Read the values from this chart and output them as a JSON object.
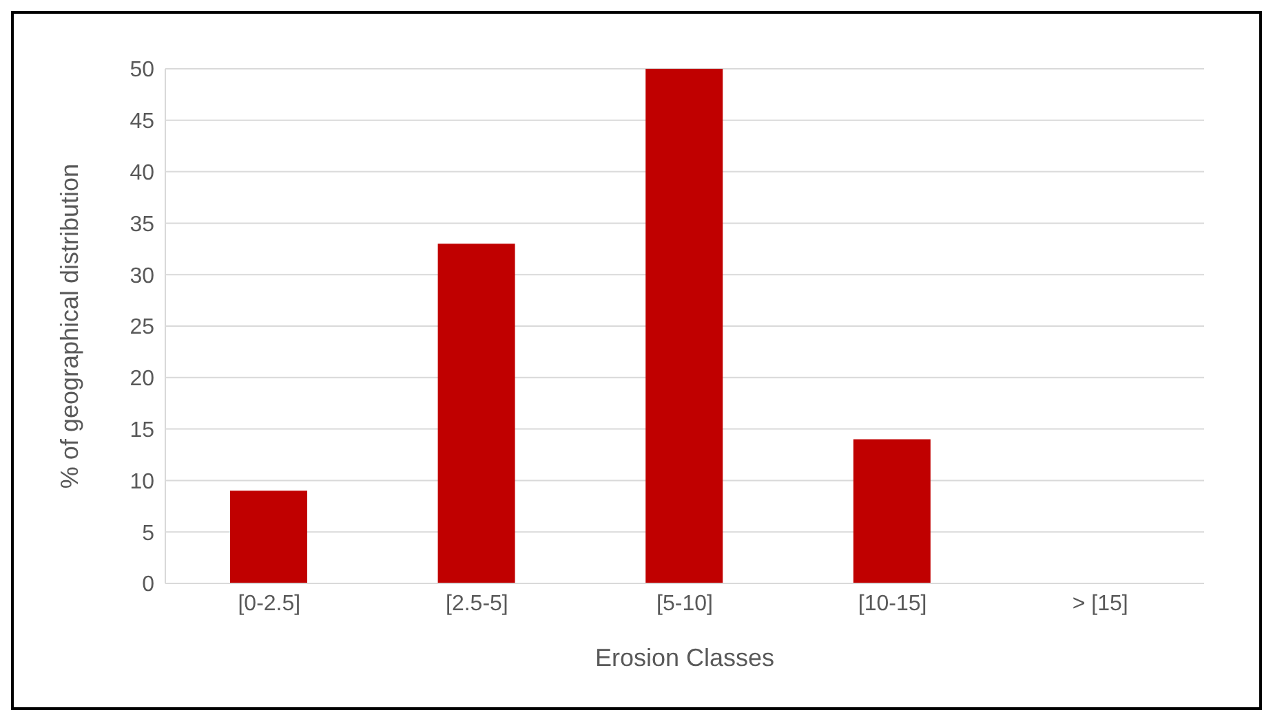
{
  "chart_data": {
    "type": "bar",
    "xlabel": "Erosion Classes",
    "ylabel": "% of geographical distribution",
    "categories": [
      "[0-2.5]",
      "[2.5-5]",
      "[5-10]",
      "[10-15]",
      "> [15]"
    ],
    "values": [
      9,
      33,
      50,
      14,
      0
    ],
    "color": "#c00000",
    "ylim": [
      0,
      50
    ],
    "yticks": [
      0,
      5,
      10,
      15,
      20,
      25,
      30,
      35,
      40,
      45,
      50
    ],
    "grid": "y"
  }
}
